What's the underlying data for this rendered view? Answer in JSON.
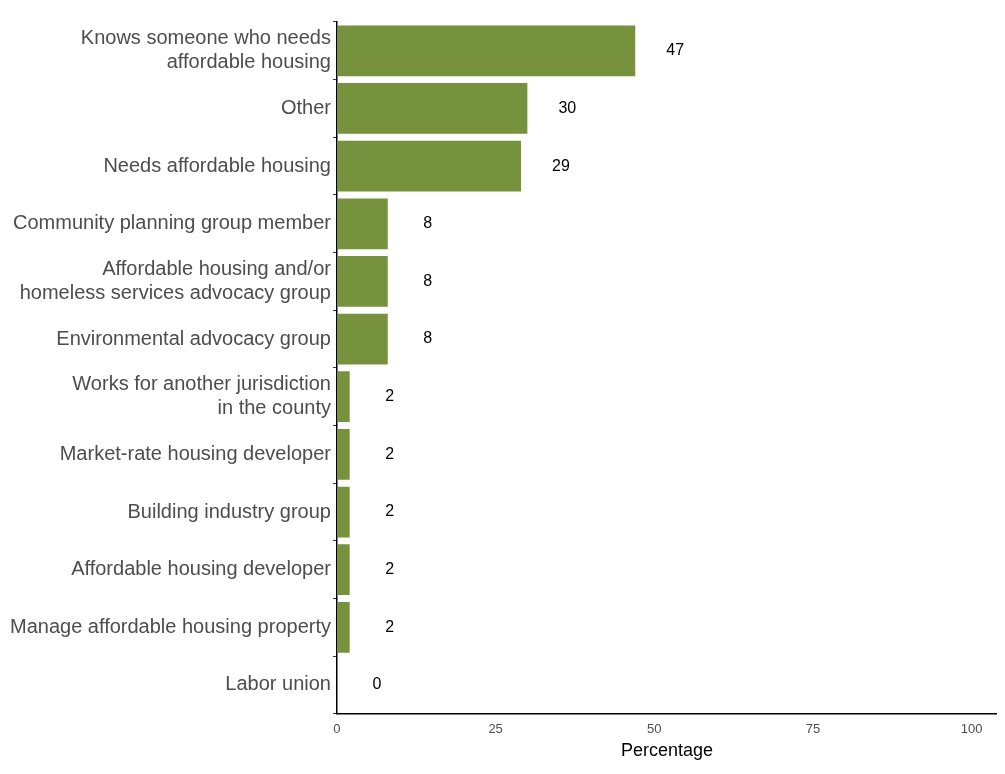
{
  "chart_data": {
    "type": "bar",
    "orientation": "horizontal",
    "xlabel": "Percentage",
    "categories": [
      "Knows someone who needs\naffordable housing",
      "Other",
      "Needs affordable housing",
      "Community planning group member",
      "Affordable housing and/or\nhomeless services advocacy group",
      "Environmental advocacy group",
      "Works for another jurisdiction\nin the county",
      "Market-rate housing developer",
      "Building industry group",
      "Affordable housing developer",
      "Manage affordable housing property",
      "Labor union"
    ],
    "values": [
      47,
      30,
      29,
      8,
      8,
      8,
      2,
      2,
      2,
      2,
      2,
      0
    ],
    "color": "#76923c",
    "xlim": [
      0,
      104
    ],
    "xticks": [
      0,
      25,
      50,
      75,
      100
    ],
    "data_labels": true,
    "grid": false,
    "legend": false
  }
}
